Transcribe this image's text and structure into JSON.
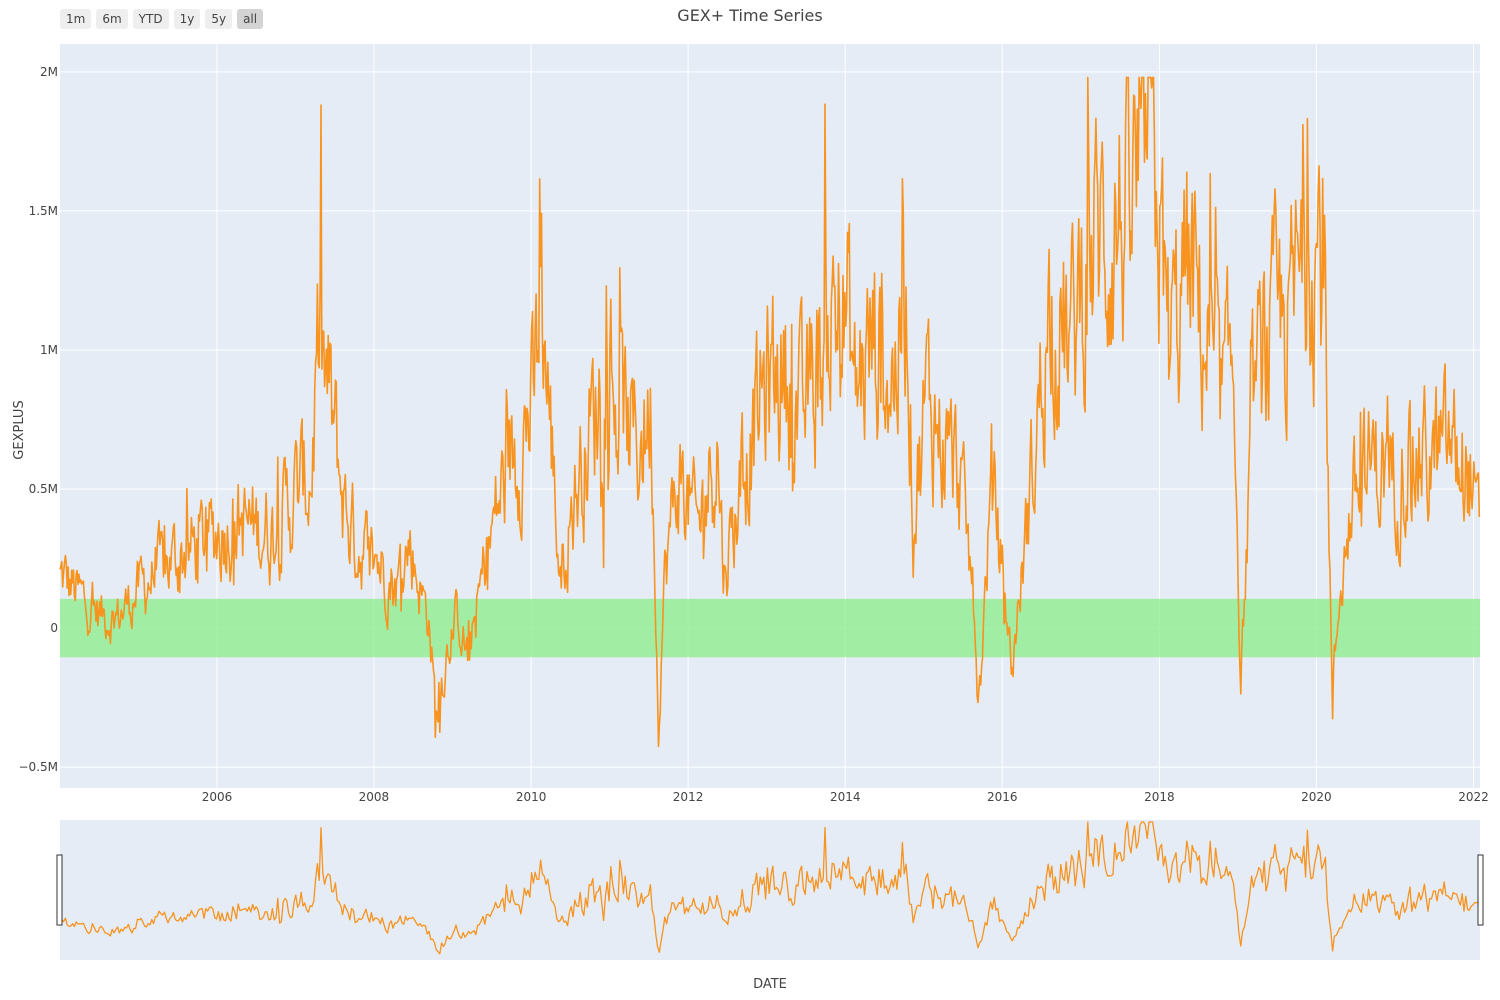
{
  "range_selector": {
    "buttons": [
      {
        "label": "1m",
        "active": false
      },
      {
        "label": "6m",
        "active": false
      },
      {
        "label": "YTD",
        "active": false
      },
      {
        "label": "1y",
        "active": false
      },
      {
        "label": "5y",
        "active": false
      },
      {
        "label": "all",
        "active": true
      }
    ]
  },
  "chart_data": {
    "type": "line",
    "title": "GEX+ Time Series",
    "xlabel": "DATE",
    "ylabel": "GEXPLUS",
    "x_range": [
      "2004-01-02",
      "2022-01-31"
    ],
    "ylim": [
      -575000,
      2100000
    ],
    "x_ticks": [
      "2006",
      "2008",
      "2010",
      "2012",
      "2014",
      "2016",
      "2018",
      "2020",
      "2022"
    ],
    "y_ticks": [
      {
        "value": -500000,
        "label": "−0.5M"
      },
      {
        "value": 0,
        "label": "0"
      },
      {
        "value": 500000,
        "label": "0.5M"
      },
      {
        "value": 1000000,
        "label": "1M"
      },
      {
        "value": 1500000,
        "label": "1.5M"
      },
      {
        "value": 2000000,
        "label": "2M"
      }
    ],
    "grid": true,
    "zero_band": {
      "y0": -105000,
      "y1": 105000,
      "color": "#90ee90"
    },
    "line_color": "#f7931e",
    "plot_bg": "#e5ecf6",
    "range_slider": true,
    "series": [
      {
        "x": [
          "2004-01",
          "2004-06",
          "2004-09",
          "2005-01",
          "2005-06",
          "2005-11",
          "2006-03",
          "2006-09",
          "2007-01",
          "2007-03",
          "2007-04",
          "2007-06",
          "2007-08",
          "2007-10",
          "2008-01",
          "2008-04",
          "2008-06",
          "2008-09",
          "2008-10",
          "2008-11",
          "2009-01",
          "2009-03",
          "2009-06",
          "2009-09",
          "2010-01",
          "2010-02",
          "2010-05",
          "2010-07",
          "2010-11",
          "2011-02",
          "2011-05",
          "2011-07",
          "2011-08",
          "2011-09",
          "2011-11",
          "2012-02",
          "2012-05",
          "2012-06",
          "2012-09",
          "2012-12",
          "2013-03",
          "2013-06",
          "2013-09",
          "2013-11",
          "2014-01",
          "2014-02",
          "2014-05",
          "2014-08",
          "2014-10",
          "2014-11",
          "2015-01",
          "2015-03",
          "2015-06",
          "2015-08",
          "2015-09",
          "2015-11",
          "2016-01",
          "2016-02",
          "2016-06",
          "2016-08",
          "2016-11",
          "2017-01",
          "2017-03",
          "2017-06",
          "2017-09",
          "2017-11",
          "2017-12",
          "2018-02",
          "2018-05",
          "2018-08",
          "2018-10",
          "2018-12",
          "2019-01",
          "2019-03",
          "2019-06",
          "2019-09",
          "2019-11",
          "2020-01",
          "2020-02",
          "2020-03",
          "2020-04",
          "2020-06",
          "2020-09",
          "2020-12",
          "2021-03",
          "2021-06",
          "2021-09",
          "2021-12",
          "2022-01"
        ],
        "y": [
          180000,
          60000,
          30000,
          150000,
          250000,
          320000,
          380000,
          350000,
          500000,
          540000,
          1000000,
          780000,
          450000,
          300000,
          250000,
          150000,
          300000,
          20000,
          -350000,
          -150000,
          50000,
          -100000,
          300000,
          580000,
          800000,
          1250000,
          200000,
          450000,
          850000,
          780000,
          650000,
          800000,
          -300000,
          200000,
          550000,
          350000,
          680000,
          200000,
          550000,
          850000,
          950000,
          750000,
          1000000,
          1150000,
          1100000,
          850000,
          1050000,
          900000,
          1200000,
          400000,
          850000,
          700000,
          550000,
          150000,
          -250000,
          550000,
          100000,
          -150000,
          750000,
          1200000,
          1000000,
          1300000,
          1400000,
          1450000,
          1550000,
          1750000,
          1600000,
          1000000,
          1300000,
          1000000,
          800000,
          950000,
          -200000,
          850000,
          1050000,
          1150000,
          1400000,
          1400000,
          1100000,
          -300000,
          100000,
          450000,
          600000,
          550000,
          620000,
          600000,
          650000,
          550000,
          350000
        ]
      }
    ]
  }
}
